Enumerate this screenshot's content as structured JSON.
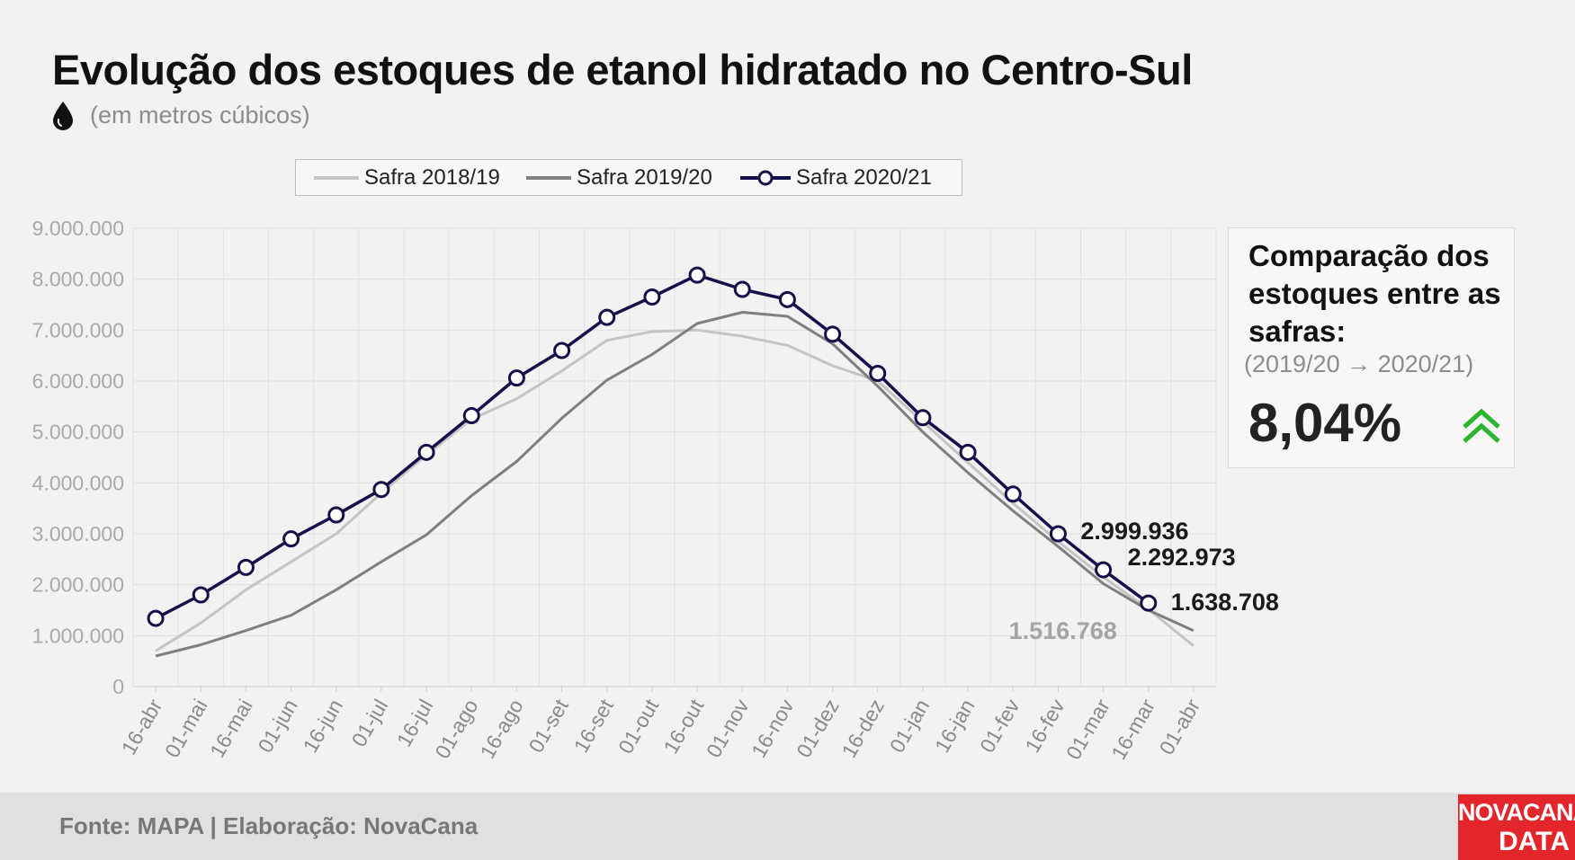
{
  "header": {
    "title": "Evolução dos estoques de etanol hidratado no Centro-Sul",
    "subtitle": "(em metros cúbicos)"
  },
  "comparison": {
    "title": "Comparação dos estoques entre as safras:",
    "period": "(2019/20 → 2020/21)",
    "value": "8,04%",
    "trend": "up",
    "color": "#2bb52b"
  },
  "footer": {
    "source": "Fonte: MAPA  | Elaboração: NovaCana",
    "logo_line1": "NOVACANA",
    "logo_line2": "DATA",
    "logo_color": "#e3262b"
  },
  "chart_data": {
    "type": "line",
    "title": "Evolução dos estoques de etanol hidratado no Centro-Sul",
    "subtitle": "(em metros cúbicos)",
    "xlabel": "",
    "ylabel": "",
    "ylim": [
      0,
      9000000
    ],
    "yticks": [
      0,
      1000000,
      2000000,
      3000000,
      4000000,
      5000000,
      6000000,
      7000000,
      8000000,
      9000000
    ],
    "ytick_labels": [
      "0",
      "1.000.000",
      "2.000.000",
      "3.000.000",
      "4.000.000",
      "5.000.000",
      "6.000.000",
      "7.000.000",
      "8.000.000",
      "9.000.000"
    ],
    "categories": [
      "16-abr",
      "01-mai",
      "16-mai",
      "01-jun",
      "16-jun",
      "01-jul",
      "16-jul",
      "01-ago",
      "16-ago",
      "01-set",
      "16-set",
      "01-out",
      "16-out",
      "01-nov",
      "16-nov",
      "01-dez",
      "16-dez",
      "01-jan",
      "16-jan",
      "01-fev",
      "16-fev",
      "01-mar",
      "16-mar",
      "01-abr"
    ],
    "grid": true,
    "legend_position": "top",
    "series": [
      {
        "name": "Safra 2018/19",
        "color": "#c4c4c4",
        "values": [
          700000,
          1250000,
          1900000,
          2450000,
          3000000,
          3800000,
          4550000,
          5250000,
          5650000,
          6200000,
          6800000,
          6970000,
          7000000,
          6880000,
          6700000,
          6300000,
          6000000,
          5200000,
          4400000,
          3600000,
          2850000,
          2150000,
          1516768,
          800000
        ]
      },
      {
        "name": "Safra 2019/20",
        "color": "#7f7f7f",
        "values": [
          600000,
          820000,
          1100000,
          1400000,
          1900000,
          2450000,
          2980000,
          3750000,
          4420000,
          5270000,
          6020000,
          6520000,
          7130000,
          7350000,
          7270000,
          6730000,
          5900000,
          5000000,
          4200000,
          3450000,
          2750000,
          2020000,
          1500000,
          1100000
        ]
      },
      {
        "name": "Safra 2020/21",
        "color": "#14114a",
        "markers": true,
        "values": [
          1340000,
          1800000,
          2340000,
          2900000,
          3370000,
          3870000,
          4600000,
          5320000,
          6060000,
          6600000,
          7250000,
          7650000,
          8080000,
          7800000,
          7600000,
          6920000,
          6150000,
          5280000,
          4600000,
          3780000,
          2999936,
          2292973,
          1638708,
          null
        ]
      }
    ],
    "annotations": [
      {
        "text": "2.999.936",
        "series": "Safra 2020/21",
        "category": "16-fev"
      },
      {
        "text": "2.292.973",
        "series": "Safra 2020/21",
        "category": "01-mar"
      },
      {
        "text": "1.638.708",
        "series": "Safra 2020/21",
        "category": "16-mar"
      },
      {
        "text": "1.516.768",
        "series": "Safra 2018/19",
        "category": "16-mar"
      }
    ]
  }
}
